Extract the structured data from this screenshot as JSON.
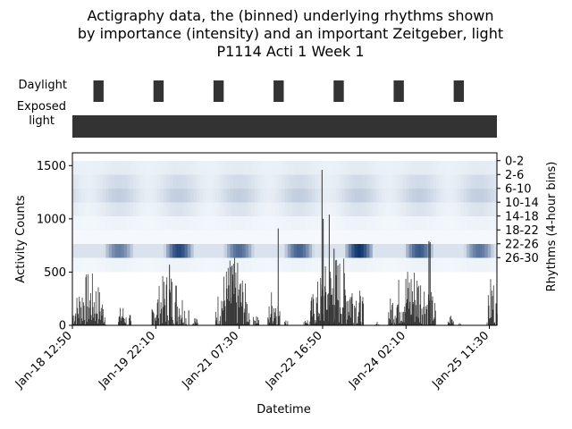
{
  "title_lines": [
    "Actigraphy data, the (binned) underlying rhythms shown",
    "by importance (intensity) and an important Zeitgeber, light",
    "P1114 Acti 1 Week 1"
  ],
  "colors": {
    "bar": "#333333",
    "heatmap_low": "#f7fbff",
    "heatmap_high": "#08306b",
    "axis": "#000000"
  },
  "chart_data": [
    {
      "type": "timeline",
      "row_labels": [
        "Daylight",
        "Exposed light"
      ],
      "daylight_periods": [
        {
          "start": 0.35,
          "end": 0.52
        },
        {
          "start": 1.35,
          "end": 1.52
        },
        {
          "start": 2.35,
          "end": 2.52
        },
        {
          "start": 3.35,
          "end": 3.52
        },
        {
          "start": 4.35,
          "end": 4.52
        },
        {
          "start": 5.35,
          "end": 5.52
        },
        {
          "start": 6.35,
          "end": 6.52
        }
      ],
      "exposed_light": {
        "start": 0.0,
        "end": 7.07
      },
      "x_unit": "days since Jan-18 12:50"
    },
    {
      "type": "bar",
      "xlabel": "Datetime",
      "ylabel": "Activity Counts",
      "ylim": [
        0,
        1620
      ],
      "yticks": [
        0,
        500,
        1000,
        1500
      ],
      "xlim": [
        0,
        7.07
      ],
      "xticks": [
        {
          "value": 0,
          "label": "Jan-18 12:50"
        },
        {
          "value": 1.389,
          "label": "Jan-19 22:10"
        },
        {
          "value": 2.778,
          "label": "Jan-21 07:30"
        },
        {
          "value": 4.167,
          "label": "Jan-22 16:50"
        },
        {
          "value": 5.556,
          "label": "Jan-24 02:10"
        },
        {
          "value": 6.944,
          "label": "Jan-25 11:30"
        }
      ],
      "activity_bursts": [
        {
          "start": 0.0,
          "end": 0.55,
          "peak": 510
        },
        {
          "start": 0.75,
          "end": 0.9,
          "peak": 210
        },
        {
          "start": 0.93,
          "end": 0.97,
          "peak": 120
        },
        {
          "start": 1.32,
          "end": 1.9,
          "peak": 530
        },
        {
          "start": 2.0,
          "end": 2.08,
          "peak": 100
        },
        {
          "start": 2.38,
          "end": 2.95,
          "peak": 650
        },
        {
          "start": 3.0,
          "end": 3.1,
          "peak": 150
        },
        {
          "start": 3.25,
          "end": 3.45,
          "peak": 410
        },
        {
          "start": 3.52,
          "end": 3.58,
          "peak": 160
        },
        {
          "start": 3.85,
          "end": 3.92,
          "peak": 110
        },
        {
          "start": 3.95,
          "end": 4.85,
          "peak": 680
        },
        {
          "start": 5.05,
          "end": 5.1,
          "peak": 40
        },
        {
          "start": 5.25,
          "end": 6.05,
          "peak": 600
        },
        {
          "start": 6.25,
          "end": 6.35,
          "peak": 120
        },
        {
          "start": 6.43,
          "end": 6.46,
          "peak": 80
        },
        {
          "start": 6.9,
          "end": 7.07,
          "peak": 500
        }
      ],
      "spikes": [
        {
          "x": 3.42,
          "y": 910
        },
        {
          "x": 4.15,
          "y": 1460
        },
        {
          "x": 4.17,
          "y": 1000
        },
        {
          "x": 4.27,
          "y": 1040
        },
        {
          "x": 4.35,
          "y": 720
        },
        {
          "x": 5.93,
          "y": 790
        },
        {
          "x": 5.95,
          "y": 780
        },
        {
          "x": 1.93,
          "y": 140
        },
        {
          "x": 2.65,
          "y": 560
        },
        {
          "x": 1.61,
          "y": 570
        }
      ]
    },
    {
      "type": "heatmap",
      "ylabel": "Rhythms (4-hour bins)",
      "ytick_labels": [
        "0-2",
        "2-6",
        "6-10",
        "10-14",
        "14-18",
        "18-22",
        "22-26",
        "26-30"
      ],
      "bins": 8,
      "row_profiles": [
        {
          "bin": 0,
          "base": 0.05,
          "pulse": 0.03
        },
        {
          "bin": 1,
          "base": 0.06,
          "pulse": 0.1
        },
        {
          "bin": 2,
          "base": 0.07,
          "pulse": 0.15
        },
        {
          "bin": 3,
          "base": 0.04,
          "pulse": 0.08
        },
        {
          "bin": 4,
          "base": 0.02,
          "pulse": 0.02
        },
        {
          "bin": 5,
          "base": 0.01,
          "pulse": 0.0
        },
        {
          "bin": 6,
          "base": 0.42,
          "pulse": 0.5
        },
        {
          "bin": 7,
          "base": 0.02,
          "pulse": 0.02
        }
      ]
    }
  ]
}
